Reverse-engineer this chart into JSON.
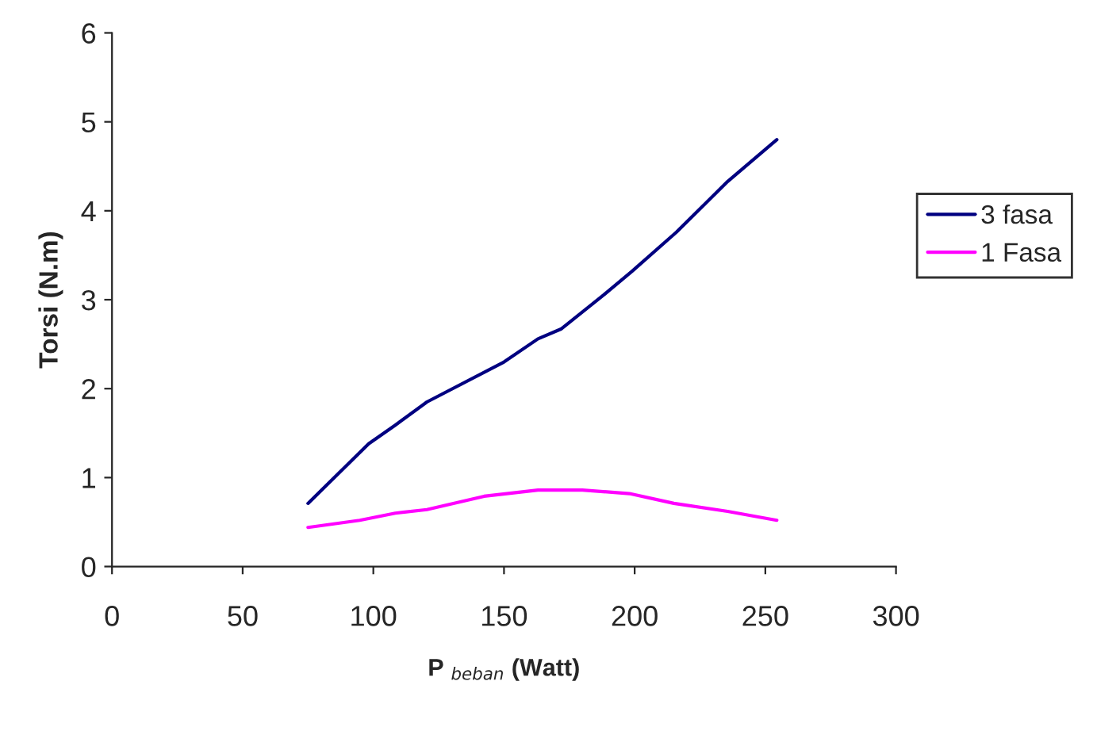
{
  "chart_data": {
    "type": "line",
    "xlabel": "P $_{beban}$ (Watt)",
    "ylabel": "Torsi (N.m)",
    "xlim": [
      0,
      300
    ],
    "xticks": [
      0,
      50,
      100,
      150,
      200,
      250,
      300
    ],
    "ylim": [
      0,
      6
    ],
    "yticks": [
      0,
      1,
      2,
      3,
      4,
      5,
      6
    ],
    "grid": false,
    "legend": "right",
    "marker": "none",
    "line_style": "solid",
    "series": [
      {
        "name": "3 fasa",
        "color": "#000080",
        "x": [
          75,
          98.2,
          108.4,
          120.5,
          150,
          163,
          171.8,
          188,
          199,
          216,
          235.6,
          254.4
        ],
        "values": [
          0.71,
          1.38,
          1.59,
          1.85,
          2.3,
          2.56,
          2.67,
          3.05,
          3.32,
          3.76,
          4.33,
          4.8
        ]
      },
      {
        "name": "1 Fasa",
        "color": "#ff00ff",
        "x": [
          75,
          94.8,
          108.4,
          120.5,
          142.4,
          163,
          180,
          198,
          215,
          235.6,
          254.4
        ],
        "values": [
          0.44,
          0.52,
          0.6,
          0.64,
          0.79,
          0.86,
          0.86,
          0.82,
          0.71,
          0.62,
          0.52
        ]
      }
    ]
  }
}
